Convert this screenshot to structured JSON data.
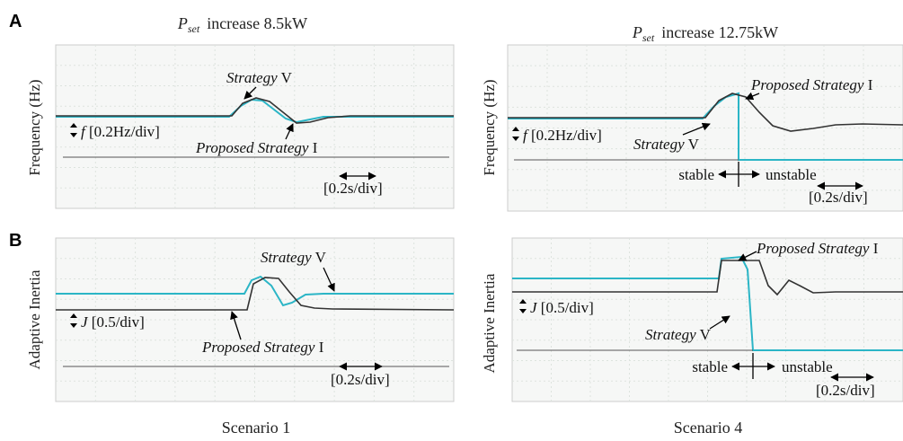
{
  "panel_labels": {
    "a": "A",
    "b": "B"
  },
  "titles": [
    {
      "symbol": "P",
      "subscript": "set",
      "text": "increase 8.5kW"
    },
    {
      "symbol": "P",
      "subscript": "set",
      "text": "increase 12.75kW"
    }
  ],
  "captions": [
    "Scenario 1",
    "Scenario 4"
  ],
  "y_labels": {
    "frequency": "Frequency (Hz)",
    "inertia": "Adaptive Inertia"
  },
  "panels": [
    {
      "strategy_v": {
        "italic": "Strategy",
        "roman": "V"
      },
      "proposed": {
        "italic": "Proposed Strategy",
        "roman": "I"
      },
      "vscale": {
        "symbol": "f",
        "text": "[0.2Hz/div]"
      },
      "tscale": "[0.2s/div]"
    },
    {
      "strategy_v": {
        "italic": "Strategy",
        "roman": "V"
      },
      "proposed": {
        "italic": "Proposed Strategy",
        "roman": "I"
      },
      "vscale": {
        "symbol": "f",
        "text": "[0.2Hz/div]"
      },
      "tscale": "[0.2s/div]",
      "stable": "stable",
      "unstable": "unstable"
    },
    {
      "strategy_v": {
        "italic": "Strategy",
        "roman": "V"
      },
      "proposed": {
        "italic": "Proposed Strategy",
        "roman": "I"
      },
      "vscale": {
        "symbol": "J",
        "text": "[0.5/div]"
      },
      "tscale": "[0.2s/div]"
    },
    {
      "strategy_v": {
        "italic": "Strategy",
        "roman": "V"
      },
      "proposed": {
        "italic": "Proposed Strategy",
        "roman": "I"
      },
      "vscale": {
        "symbol": "J",
        "text": "[0.5/div]"
      },
      "tscale": "[0.2s/div]",
      "stable": "stable",
      "unstable": "unstable"
    }
  ]
}
